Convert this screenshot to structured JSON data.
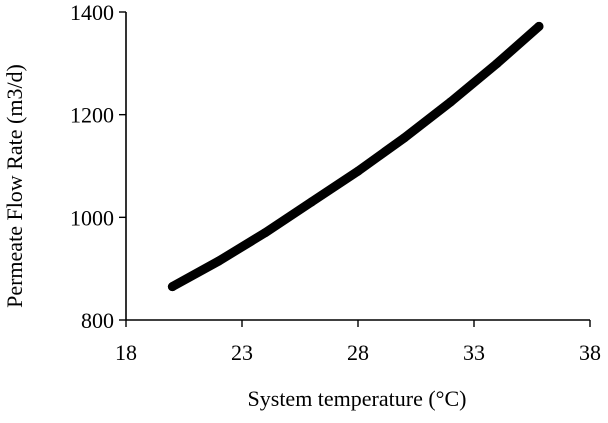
{
  "chart_data": {
    "type": "line",
    "title": "",
    "xlabel": "System temperature (°C)",
    "ylabel": "Permeate Flow Rate (m3/d)",
    "xlim": [
      18,
      38
    ],
    "ylim": [
      800,
      1400
    ],
    "x_ticks": [
      "18",
      "23",
      "28",
      "33",
      "38"
    ],
    "y_ticks": [
      "800",
      "1000",
      "1200",
      "1400"
    ],
    "grid": false,
    "legend": "none",
    "series": [
      {
        "color": "#000000",
        "x": [
          20,
          22,
          24,
          26,
          28,
          30,
          32,
          34,
          35.8
        ],
        "y": [
          865,
          915,
          970,
          1030,
          1090,
          1155,
          1225,
          1300,
          1372
        ]
      }
    ]
  }
}
